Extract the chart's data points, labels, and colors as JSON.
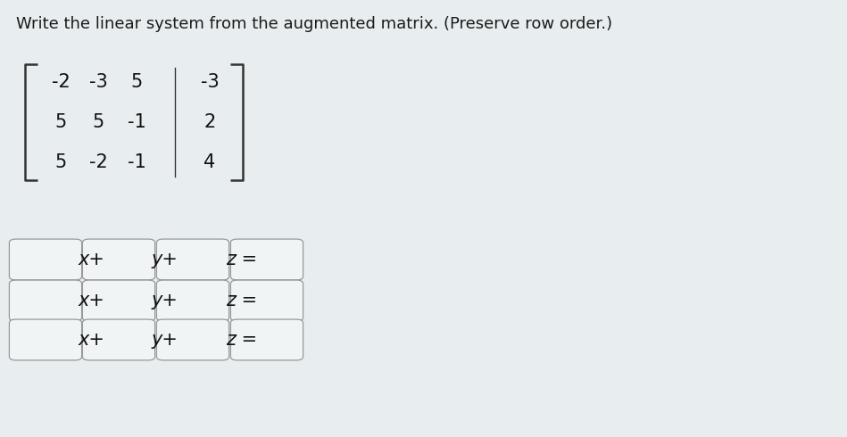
{
  "title": "Write the linear system from the augmented matrix. (Preserve row order.)",
  "title_fontsize": 13.0,
  "title_color": "#1a1a1a",
  "background_color": "#e8eef0",
  "matrix": [
    [
      "-2",
      "-3",
      "5",
      "-3"
    ],
    [
      "5",
      "5",
      "-1",
      "2"
    ],
    [
      "5",
      "-2",
      "-1",
      "4"
    ]
  ],
  "matrix_fontsize": 15,
  "matrix_color": "#111111",
  "box_color": "#f0f4f5",
  "box_edge_color": "#999999",
  "input_label_fontsize": 15,
  "n_rows": 3
}
